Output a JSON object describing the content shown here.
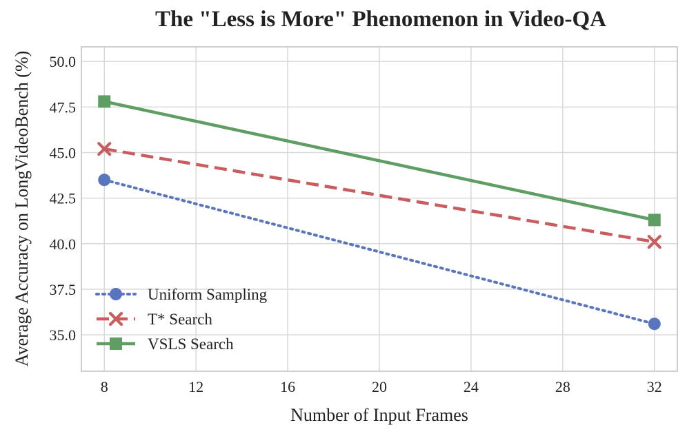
{
  "chart_data": {
    "type": "line",
    "title": "The \"Less is More\" Phenomenon in Video-QA",
    "xlabel": "Number of Input Frames",
    "ylabel": "Average Accuracy on LongVideoBench (%)",
    "xlim": [
      7,
      33
    ],
    "ylim": [
      33,
      50.8
    ],
    "xticks": [
      8,
      12,
      16,
      20,
      24,
      28,
      32
    ],
    "yticks": [
      35.0,
      37.5,
      40.0,
      42.5,
      45.0,
      47.5,
      50.0
    ],
    "xtick_labels": [
      "8",
      "12",
      "16",
      "20",
      "24",
      "28",
      "32"
    ],
    "ytick_labels": [
      "35.0",
      "37.5",
      "40.0",
      "42.5",
      "45.0",
      "47.5",
      "50.0"
    ],
    "grid": true,
    "legend_position": "lower-left",
    "colors": {
      "frame": "#c8c8c8",
      "grid": "#d8d8d8",
      "text": "#222222"
    },
    "series": [
      {
        "name": "Uniform Sampling",
        "x": [
          8,
          32
        ],
        "y": [
          43.5,
          35.6
        ],
        "color": "#5975be",
        "line_style": "dotted",
        "marker": "circle"
      },
      {
        "name": "T* Search",
        "x": [
          8,
          32
        ],
        "y": [
          45.2,
          40.1
        ],
        "color": "#c85c5e",
        "line_style": "dashed",
        "marker": "x"
      },
      {
        "name": "VSLS Search",
        "x": [
          8,
          32
        ],
        "y": [
          47.8,
          41.3
        ],
        "color": "#5e9e62",
        "line_style": "solid",
        "marker": "square"
      }
    ]
  }
}
